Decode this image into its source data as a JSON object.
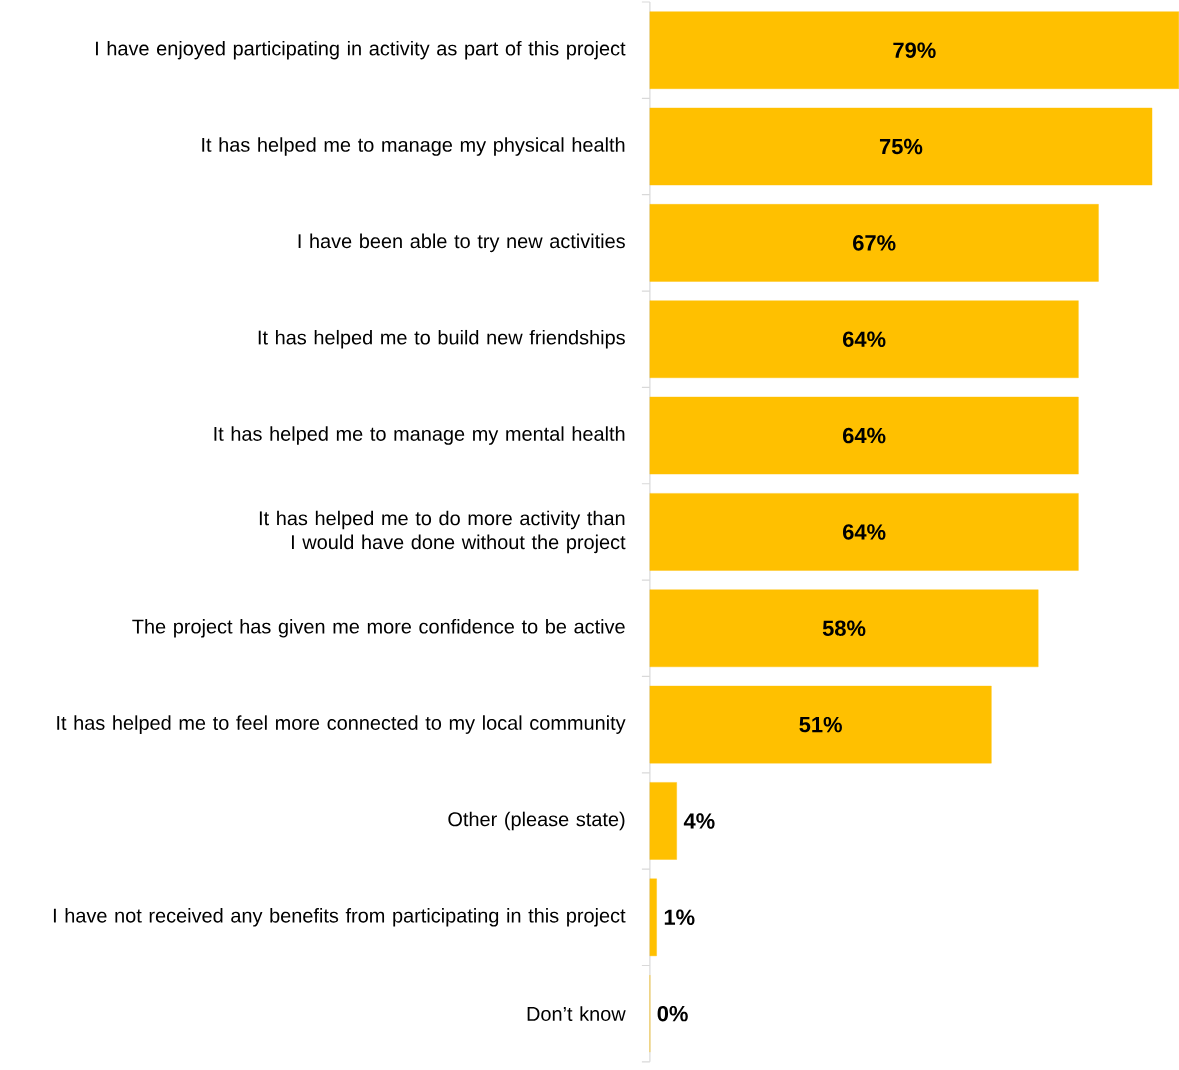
{
  "chart_data": {
    "type": "bar",
    "orientation": "horizontal",
    "categories": [
      "I have enjoyed participating in activity as part of this project",
      "It has helped me to manage my physical health",
      "I have been able to try new activities",
      "It has helped me to build new friendships",
      "It has helped me to manage my mental health",
      "It has helped me to do more activity than I would have done without the project",
      "The project has given me more confidence to be active",
      "It has helped me to feel more connected to my local community",
      "Other (please state)",
      "I have not received any benefits from participating in this project",
      "Don’t know"
    ],
    "values": [
      79,
      75,
      67,
      64,
      64,
      64,
      58,
      51,
      4,
      1,
      0
    ],
    "value_labels": [
      "79%",
      "75%",
      "67%",
      "64%",
      "64%",
      "64%",
      "58%",
      "51%",
      "4%",
      "1%",
      "0%"
    ],
    "color": "#ffc000"
  }
}
